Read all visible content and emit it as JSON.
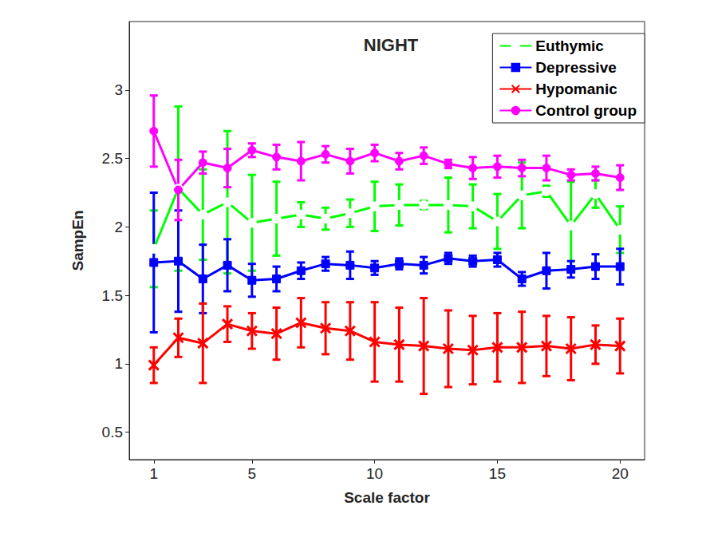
{
  "chart_data": {
    "type": "line",
    "title": "NIGHT",
    "x_label": "Scale factor",
    "y_label": "SampEn",
    "x": [
      1,
      2,
      3,
      4,
      5,
      6,
      7,
      8,
      9,
      10,
      11,
      12,
      13,
      14,
      15,
      16,
      17,
      18,
      19,
      20
    ],
    "xlim": [
      0,
      21
    ],
    "xticks": [
      1,
      5,
      10,
      15,
      20
    ],
    "ylim": [
      0.3,
      3.5
    ],
    "yticks": [
      0.5,
      1,
      1.5,
      2,
      2.5,
      3
    ],
    "grid": false,
    "legend": "top-right",
    "series": [
      {
        "name": "Euthymic",
        "color": "#00ff00",
        "marker": "open_circle",
        "values": [
          1.84,
          2.28,
          2.09,
          2.18,
          2.03,
          2.06,
          2.09,
          2.06,
          2.1,
          2.15,
          2.16,
          2.16,
          2.16,
          2.15,
          2.04,
          2.23,
          2.26,
          2.01,
          2.24,
          1.98
        ],
        "errors": [
          0.28,
          0.6,
          0.33,
          0.52,
          0.35,
          0.27,
          0.09,
          0.08,
          0.1,
          0.18,
          0.15,
          0.03,
          0.2,
          0.16,
          0.2,
          0.24,
          0.04,
          0.32,
          0.1,
          0.17
        ]
      },
      {
        "name": "Depressive",
        "color": "#0000ff",
        "marker": "square",
        "values": [
          1.74,
          1.75,
          1.62,
          1.72,
          1.61,
          1.62,
          1.68,
          1.73,
          1.72,
          1.7,
          1.73,
          1.72,
          1.77,
          1.75,
          1.76,
          1.62,
          1.68,
          1.69,
          1.71,
          1.71
        ],
        "errors": [
          0.51,
          0.37,
          0.25,
          0.19,
          0.12,
          0.09,
          0.06,
          0.05,
          0.1,
          0.05,
          0.04,
          0.06,
          0.04,
          0.04,
          0.05,
          0.05,
          0.13,
          0.06,
          0.09,
          0.13
        ]
      },
      {
        "name": "Hypomanic",
        "color": "#ff0000",
        "marker": "x",
        "values": [
          0.99,
          1.19,
          1.15,
          1.29,
          1.24,
          1.22,
          1.3,
          1.26,
          1.24,
          1.16,
          1.14,
          1.13,
          1.11,
          1.1,
          1.12,
          1.12,
          1.13,
          1.11,
          1.14,
          1.13
        ],
        "errors": [
          0.13,
          0.14,
          0.29,
          0.13,
          0.13,
          0.19,
          0.18,
          0.19,
          0.21,
          0.29,
          0.27,
          0.35,
          0.28,
          0.25,
          0.25,
          0.26,
          0.22,
          0.23,
          0.14,
          0.2
        ]
      },
      {
        "name": "Control group",
        "color": "#ff00ff",
        "marker": "filled_circle",
        "values": [
          2.7,
          2.27,
          2.47,
          2.43,
          2.56,
          2.51,
          2.48,
          2.53,
          2.48,
          2.54,
          2.48,
          2.52,
          2.46,
          2.43,
          2.44,
          2.43,
          2.43,
          2.38,
          2.39,
          2.36
        ],
        "errors": [
          0.26,
          0.22,
          0.08,
          0.14,
          0.05,
          0.09,
          0.14,
          0.06,
          0.09,
          0.06,
          0.06,
          0.06,
          0.03,
          0.08,
          0.08,
          0.06,
          0.09,
          0.04,
          0.05,
          0.09
        ]
      }
    ]
  }
}
